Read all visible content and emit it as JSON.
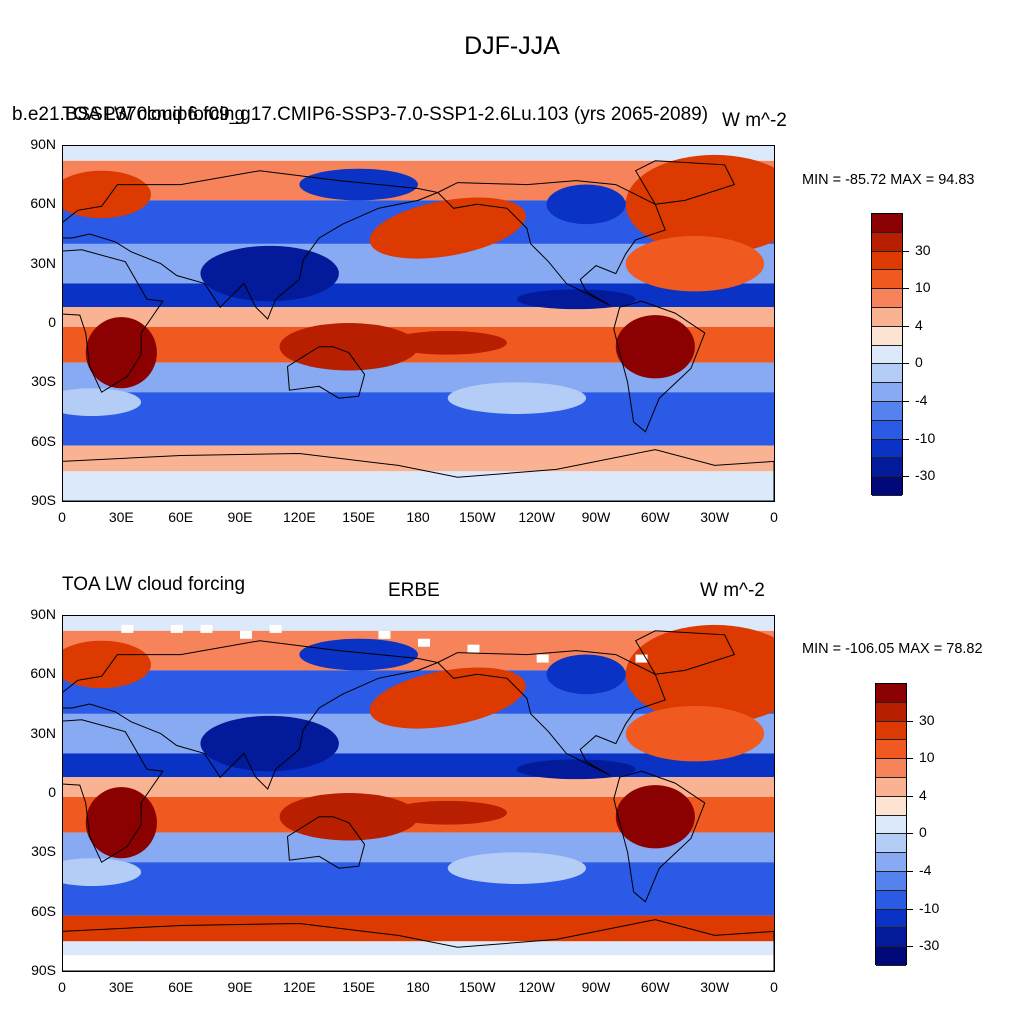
{
  "title": "DJF-JJA",
  "top_panel": {
    "left_title": "TOA LW cloud forcing",
    "center_title": "b.e21.BSSP370cmip6.f09_g17.CMIP6-SSP3-7.0-SSP1-2.6Lu.103 (yrs 2065-2089)",
    "right_title": "W m^-2",
    "minmax": "MIN = -85.72 MAX =  94.83"
  },
  "bottom_panel": {
    "left_title": "TOA LW cloud forcing",
    "center_title": "ERBE",
    "right_title": "W m^-2",
    "minmax": "MIN = -106.05 MAX =  78.82"
  },
  "lat_labels": [
    "90N",
    "60N",
    "30N",
    "0",
    "30S",
    "60S",
    "90S"
  ],
  "lon_labels": [
    "0",
    "30E",
    "60E",
    "90E",
    "120E",
    "150E",
    "180",
    "150W",
    "120W",
    "90W",
    "60W",
    "30W",
    "0"
  ],
  "colorbar": {
    "labels": [
      "30",
      "10",
      "4",
      "0",
      "-4",
      "-10",
      "-30"
    ],
    "colors": [
      "#8b0000",
      "#b81e00",
      "#dc3a00",
      "#f05a20",
      "#f6835a",
      "#fab392",
      "#fde4d2",
      "#dce9fb",
      "#b3cdf7",
      "#87aaf2",
      "#5582ec",
      "#2a5ae6",
      "#0a32c4",
      "#031a9a",
      "#00087a"
    ]
  },
  "colors": {
    "land_outline": "#000000",
    "missing": "#ffffff"
  }
}
